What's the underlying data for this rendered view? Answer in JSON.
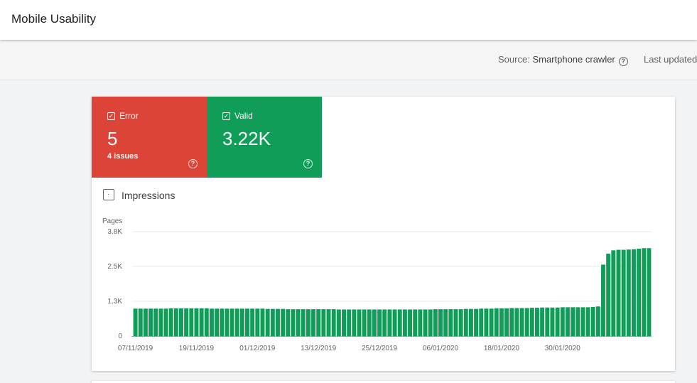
{
  "header": {
    "title": "Mobile Usability"
  },
  "subbar": {
    "source_label": "Source:",
    "source_value": "Smartphone crawler",
    "last_updated_label": "Last updated"
  },
  "tiles": {
    "error": {
      "label": "Error",
      "count": "5",
      "sub": "4 issues",
      "color": "#db4437"
    },
    "valid": {
      "label": "Valid",
      "count": "3.22K",
      "color": "#0f9d58"
    }
  },
  "impressions": {
    "label": "Impressions",
    "checked": false
  },
  "chart_data": {
    "type": "bar",
    "ylabel": "Pages",
    "ylim": [
      0,
      3800
    ],
    "yticks": [
      {
        "value": 0,
        "label": "0"
      },
      {
        "value": 1267,
        "label": "1.3K"
      },
      {
        "value": 2533,
        "label": "2.5K"
      },
      {
        "value": 3800,
        "label": "3.8K"
      }
    ],
    "xtick_labels": [
      "07/11/2019",
      "19/11/2019",
      "01/12/2019",
      "13/12/2019",
      "25/12/2019",
      "06/01/2020",
      "18/01/2020",
      "30/01/2020"
    ],
    "start_date": "07/11/2019",
    "bar_color": "#0f9d58",
    "series": [
      {
        "values": [
          1000,
          1000,
          1000,
          1000,
          1000,
          1000,
          1000,
          1010,
          1010,
          1010,
          1010,
          1010,
          1010,
          1010,
          1010,
          1000,
          1000,
          1000,
          1000,
          1000,
          1000,
          1000,
          1000,
          1000,
          1000,
          1000,
          990,
          990,
          990,
          990,
          980,
          980,
          980,
          980,
          980,
          980,
          980,
          980,
          980,
          980,
          970,
          970,
          970,
          970,
          970,
          970,
          970,
          970,
          970,
          970,
          970,
          970,
          970,
          970,
          970,
          970,
          970,
          970,
          970,
          980,
          980,
          980,
          980,
          980,
          980,
          990,
          990,
          990,
          1000,
          1000,
          1000,
          1010,
          1010,
          1010,
          1020,
          1020,
          1020,
          1020,
          1030,
          1030,
          1040,
          1040,
          1040,
          1040,
          1050,
          1050,
          1050,
          1050,
          1050,
          1050,
          1060,
          1080,
          2600,
          3000,
          3120,
          3140,
          3140,
          3150,
          3160,
          3180,
          3200,
          3200
        ]
      }
    ]
  }
}
